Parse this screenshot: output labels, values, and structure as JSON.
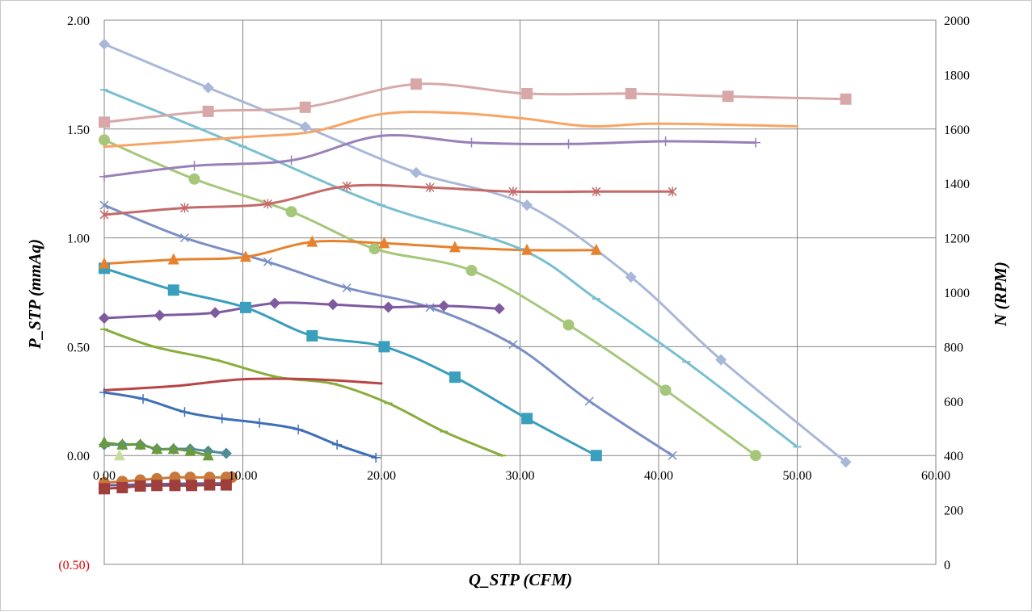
{
  "chart_data": {
    "type": "line",
    "title": "",
    "xlabel": "Q_STP (CFM)",
    "ylabel": "P_STP (mmAq)",
    "y2label": "N (RPM)",
    "xlim": [
      0,
      60
    ],
    "ylim": [
      -0.5,
      2.0
    ],
    "y2lim": [
      0,
      2000
    ],
    "x_ticks": [
      "0.00",
      "10.00",
      "20.00",
      "30.00",
      "40.00",
      "50.00",
      "60.00"
    ],
    "y_ticks": [
      "(0.50)",
      "0.00",
      "0.50",
      "1.00",
      "1.50",
      "2.00"
    ],
    "y2_ticks": [
      "0",
      "200",
      "400",
      "600",
      "800",
      "1000",
      "1200",
      "1400",
      "1600",
      "1800",
      "2000"
    ],
    "grid": true,
    "legend": "none",
    "series": [
      {
        "axis": "left",
        "color": "#a9b8d8",
        "marker": "diamond",
        "x": [
          0,
          7.5,
          14.5,
          22.5,
          30.5,
          38,
          44.5,
          53.5
        ],
        "y": [
          1.89,
          1.69,
          1.51,
          1.3,
          1.15,
          0.82,
          0.44,
          -0.03
        ]
      },
      {
        "axis": "left",
        "color": "#79bfd0",
        "marker": "dash",
        "x": [
          0,
          10,
          20,
          30,
          35.5,
          42,
          50
        ],
        "y": [
          1.68,
          1.42,
          1.15,
          0.95,
          0.72,
          0.43,
          0.04
        ]
      },
      {
        "axis": "left",
        "color": "#a6c77a",
        "marker": "circle",
        "x": [
          0,
          6.5,
          13.5,
          19.5,
          26.5,
          33.5,
          40.5,
          47
        ],
        "y": [
          1.45,
          1.27,
          1.12,
          0.95,
          0.85,
          0.6,
          0.3,
          0.0
        ]
      },
      {
        "axis": "left",
        "color": "#7b8fc4",
        "marker": "x",
        "x": [
          0,
          5.8,
          11.8,
          17.5,
          23.5,
          29.5,
          35,
          41
        ],
        "y": [
          1.15,
          1.0,
          0.89,
          0.77,
          0.68,
          0.51,
          0.25,
          0.0
        ]
      },
      {
        "axis": "left",
        "color": "#3a9ebd",
        "marker": "square",
        "x": [
          0,
          5,
          10.2,
          15,
          20.2,
          25.3,
          30.5,
          35.5
        ],
        "y": [
          0.86,
          0.76,
          0.68,
          0.55,
          0.5,
          0.36,
          0.17,
          0.0
        ]
      },
      {
        "axis": "left",
        "color": "#89ad3c",
        "marker": "dash",
        "x": [
          0,
          3.6,
          8,
          12.5,
          16.5,
          20.5,
          24.5,
          28.7
        ],
        "y": [
          0.58,
          0.5,
          0.44,
          0.36,
          0.33,
          0.24,
          0.11,
          0.0
        ]
      },
      {
        "axis": "left",
        "color": "#3d6fb8",
        "marker": "plus",
        "x": [
          0,
          2.8,
          5.8,
          8.5,
          11.2,
          14,
          16.8,
          19.6
        ],
        "y": [
          0.29,
          0.26,
          0.2,
          0.17,
          0.15,
          0.12,
          0.05,
          -0.01
        ]
      },
      {
        "axis": "left",
        "color": "#4f8c96",
        "marker": "diamond",
        "x": [
          0,
          1.3,
          2.6,
          3.8,
          5,
          6.2,
          7.5,
          8.8
        ],
        "y": [
          0.05,
          0.05,
          0.05,
          0.03,
          0.03,
          0.03,
          0.02,
          0.01
        ]
      },
      {
        "axis": "left",
        "color": "#6a9a3c",
        "marker": "triangle",
        "x": [
          0,
          1.3,
          2.6,
          3.8,
          5,
          6.2,
          7.5
        ],
        "y": [
          0.06,
          0.05,
          0.05,
          0.03,
          0.03,
          0.02,
          0.0
        ]
      },
      {
        "axis": "left",
        "color": "#c8dca0",
        "marker": "triangle",
        "x": [
          1.1
        ],
        "y": [
          0.0
        ]
      },
      {
        "axis": "right",
        "color": "#d8a8a8",
        "marker": "square",
        "x": [
          0,
          7.5,
          14.5,
          22.5,
          30.5,
          38,
          45,
          53.5
        ],
        "y": [
          1625,
          1665,
          1680,
          1765,
          1730,
          1730,
          1720,
          1710
        ]
      },
      {
        "axis": "right",
        "color": "#f8a465",
        "marker": "none",
        "x": [
          0,
          10,
          15,
          20,
          25,
          30,
          35,
          40,
          50
        ],
        "y": [
          1535,
          1570,
          1590,
          1655,
          1660,
          1640,
          1610,
          1620,
          1610
        ]
      },
      {
        "axis": "right",
        "color": "#9a80b8",
        "marker": "plus",
        "x": [
          0,
          6.5,
          13.5,
          20,
          26.5,
          33.5,
          40.5,
          47
        ],
        "y": [
          1425,
          1465,
          1485,
          1575,
          1550,
          1545,
          1555,
          1550
        ]
      },
      {
        "axis": "right",
        "color": "#c46a6a",
        "marker": "asterisk",
        "x": [
          0,
          5.8,
          11.8,
          17.5,
          23.5,
          29.5,
          35.5,
          41
        ],
        "y": [
          1285,
          1310,
          1325,
          1390,
          1385,
          1370,
          1370,
          1370
        ]
      },
      {
        "axis": "right",
        "color": "#e8812e",
        "marker": "triangle",
        "x": [
          0,
          5,
          10.2,
          15,
          20.2,
          25.3,
          30.5,
          35.5
        ],
        "y": [
          1105,
          1120,
          1130,
          1185,
          1180,
          1165,
          1155,
          1155
        ]
      },
      {
        "axis": "right",
        "color": "#7e5aa0",
        "marker": "diamond",
        "x": [
          0,
          4,
          8,
          12.3,
          16.5,
          20.5,
          24.5,
          28.5
        ],
        "y": [
          905,
          915,
          925,
          960,
          955,
          945,
          950,
          940
        ]
      },
      {
        "axis": "right",
        "color": "#b84444",
        "marker": "none",
        "x": [
          0,
          5,
          10,
          15,
          20
        ],
        "y": [
          640,
          655,
          680,
          680,
          665
        ]
      },
      {
        "axis": "right",
        "color": "#c8783a",
        "marker": "circle",
        "x": [
          0,
          1.3,
          2.6,
          3.8,
          5.1,
          6.2,
          7.6,
          8.8,
          9.2
        ],
        "y": [
          300,
          305,
          310,
          315,
          320,
          320,
          320,
          320,
          320
        ]
      },
      {
        "axis": "right",
        "color": "#a03e3c",
        "marker": "square",
        "x": [
          0,
          1.3,
          2.6,
          3.8,
          5.1,
          6.3,
          7.6,
          8.8
        ],
        "y": [
          278,
          282,
          288,
          290,
          290,
          290,
          292,
          292
        ]
      },
      {
        "axis": "right",
        "color": "#6a5a9a",
        "marker": "none",
        "x": [
          0,
          5,
          8.8
        ],
        "y": [
          290,
          296,
          298
        ]
      }
    ]
  }
}
